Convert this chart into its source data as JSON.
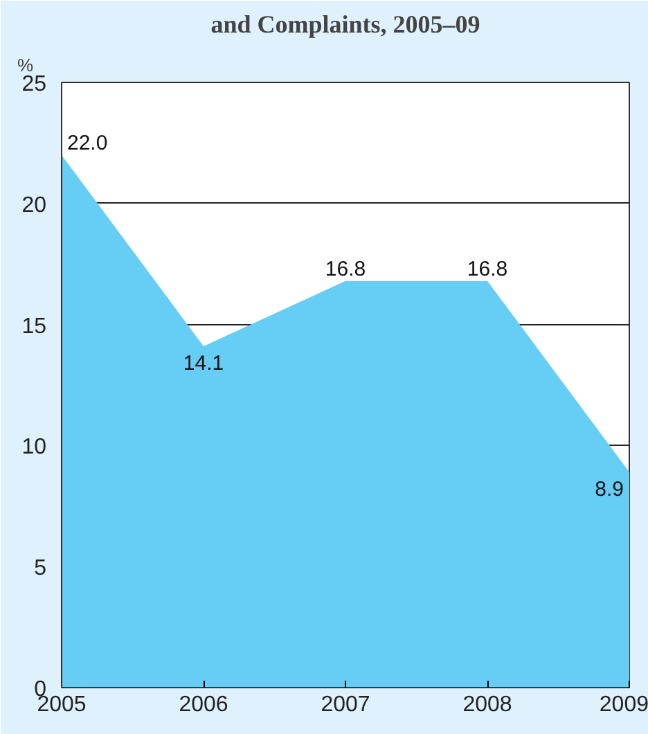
{
  "chart_data": {
    "type": "area",
    "title": "and Complaints, 2005–09",
    "ylabel": "%",
    "x": [
      2005,
      2006,
      2007,
      2008,
      2009
    ],
    "xlim": [
      2005,
      2009
    ],
    "xticks": [
      2005,
      2006,
      2007,
      2008,
      2009
    ],
    "ylim": [
      0,
      25
    ],
    "yticks": [
      0,
      5,
      10,
      15,
      20,
      25
    ],
    "grid": "y",
    "series": [
      {
        "color": "#66cdf5",
        "values": [
          22.0,
          14.1,
          16.8,
          16.8,
          8.9
        ],
        "value_labels": [
          "22.0",
          "14.1",
          "16.8",
          "16.8",
          "8.9"
        ]
      }
    ]
  }
}
